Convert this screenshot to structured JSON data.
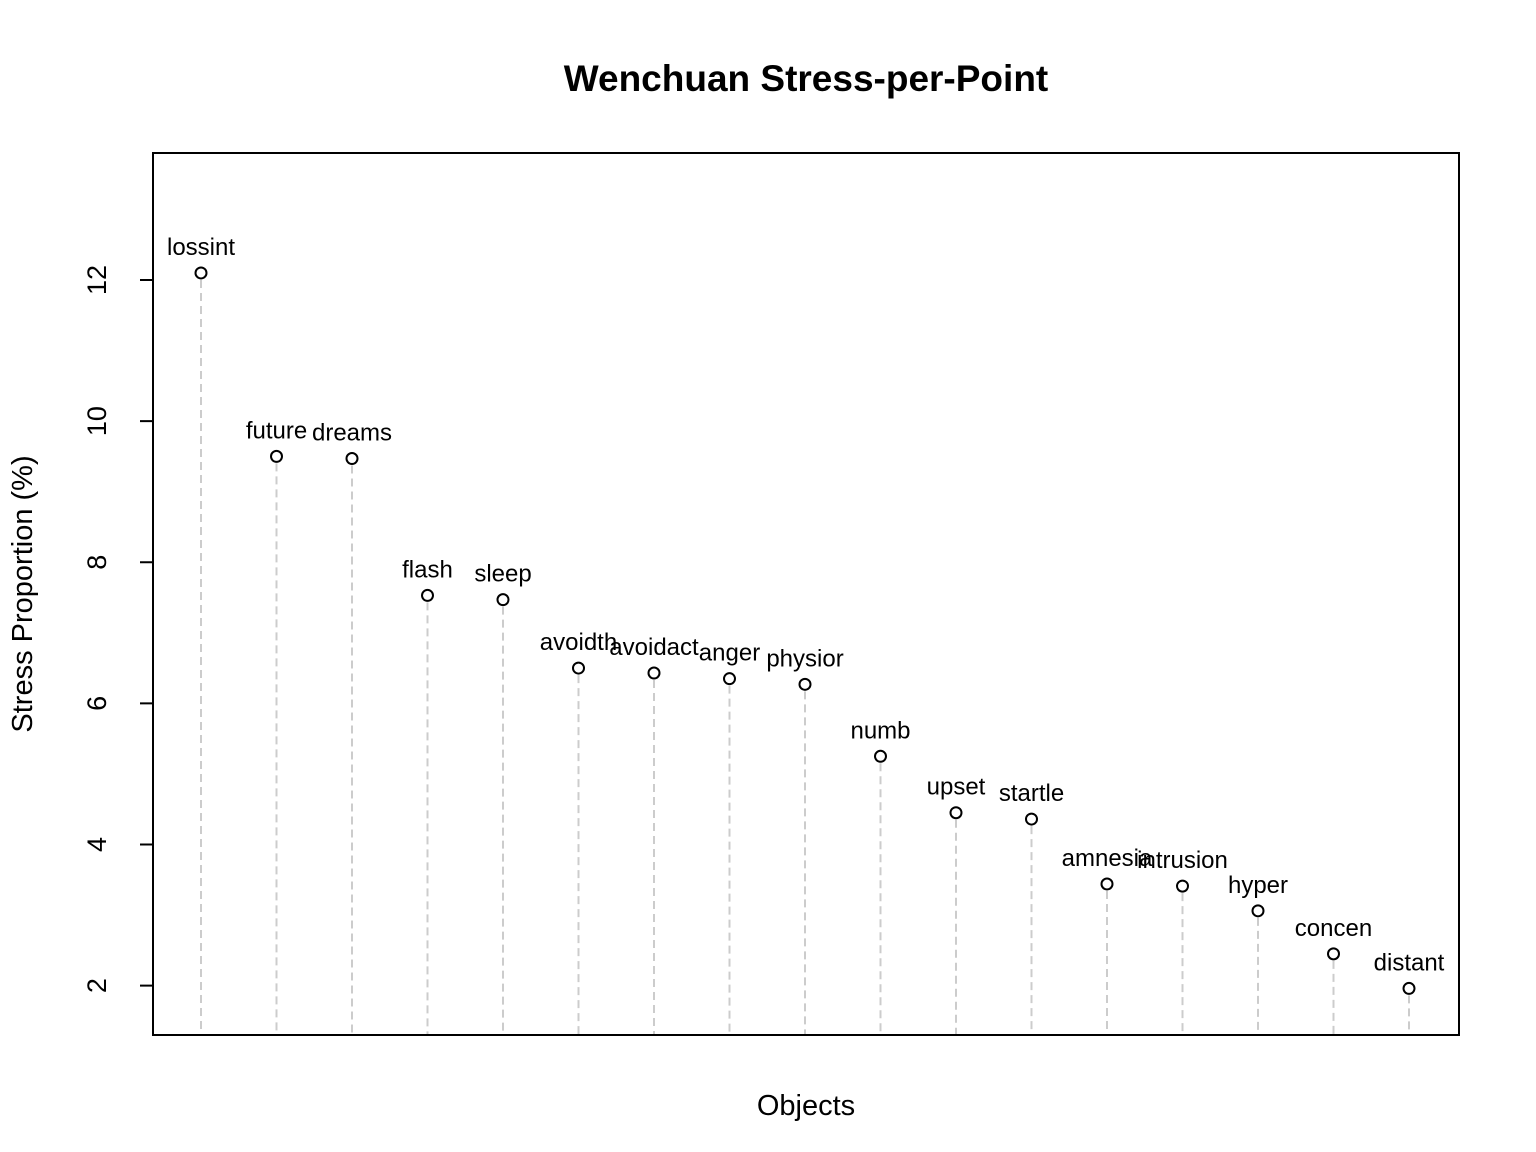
{
  "chart_data": {
    "type": "scatter",
    "title": "Wenchuan Stress-per-Point",
    "xlabel": "Objects",
    "ylabel": "Stress Proportion (%)",
    "ylim": [
      1.3,
      13.8
    ],
    "yticks": [
      2,
      4,
      6,
      8,
      10,
      12
    ],
    "grid": false,
    "legend": "none",
    "point_style": "open-circle",
    "drop_line_style": "dashed",
    "colors": {
      "point": "#000000",
      "drop_line": "#cccccc",
      "axis": "#000000"
    },
    "categories": [
      "lossint",
      "future",
      "dreams",
      "flash",
      "sleep",
      "avoidth",
      "avoidact",
      "anger",
      "physior",
      "numb",
      "upset",
      "startle",
      "amnesia",
      "intrusion",
      "hyper",
      "concen",
      "distant"
    ],
    "values": [
      12.1,
      9.5,
      9.47,
      7.53,
      7.47,
      6.5,
      6.43,
      6.35,
      6.27,
      5.25,
      4.45,
      4.36,
      3.44,
      3.41,
      3.06,
      2.45,
      1.96
    ]
  }
}
